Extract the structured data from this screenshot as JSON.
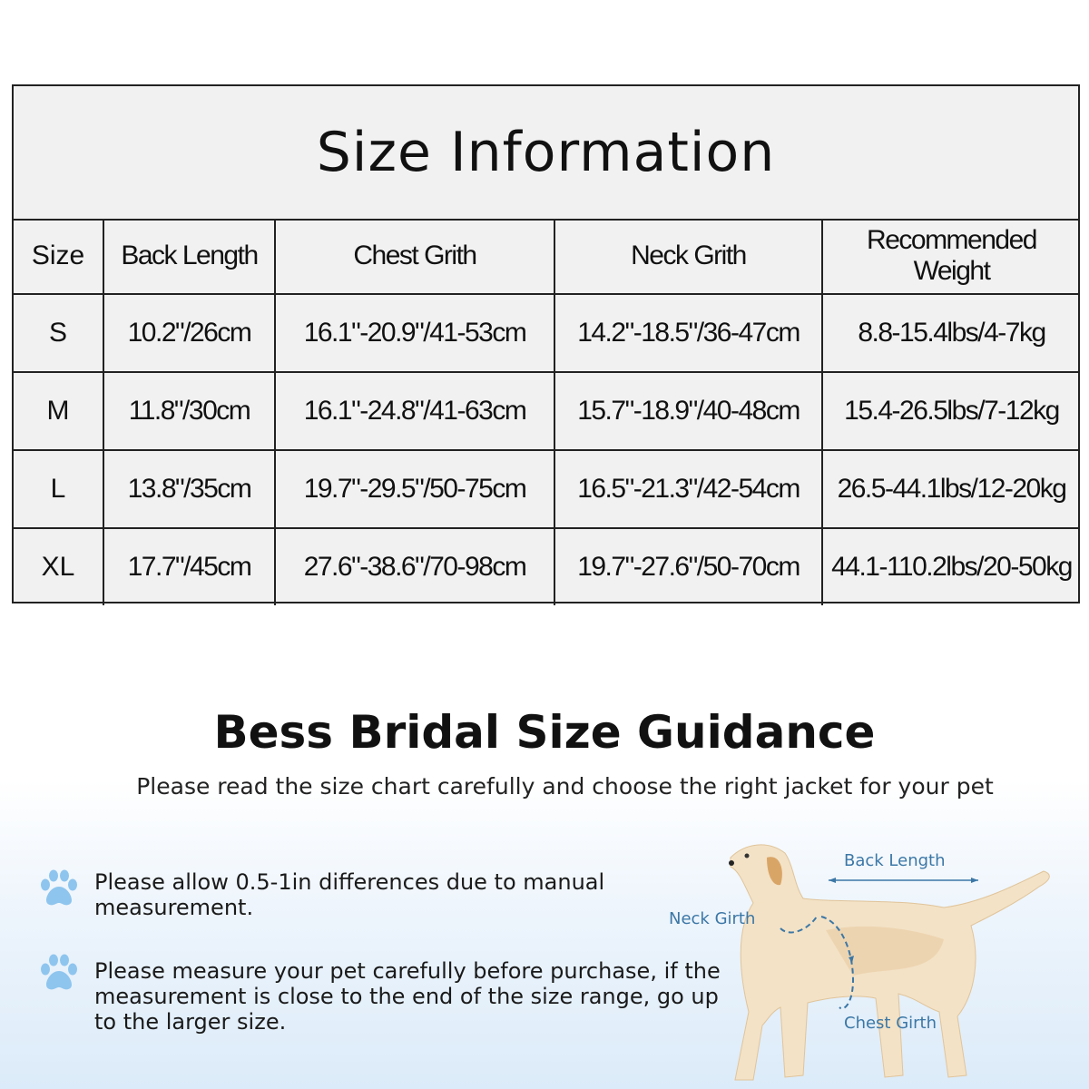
{
  "size_table": {
    "title": "Size Information",
    "headers": [
      "Size",
      "Back Length",
      "Chest Grith",
      "Neck Grith",
      "Recommended Weight"
    ],
    "rows": [
      [
        "S",
        "10.2\"/26cm",
        "16.1\"-20.9\"/41-53cm",
        "14.2\"-18.5\"/36-47cm",
        "8.8-15.4lbs/4-7kg"
      ],
      [
        "M",
        "11.8\"/30cm",
        "16.1\"-24.8\"/41-63cm",
        "15.7\"-18.9\"/40-48cm",
        "15.4-26.5lbs/7-12kg"
      ],
      [
        "L",
        "13.8\"/35cm",
        "19.7\"-29.5\"/50-75cm",
        "16.5\"-21.3\"/42-54cm",
        "26.5-44.1lbs/12-20kg"
      ],
      [
        "XL",
        "17.7\"/45cm",
        "27.6\"-38.6\"/70-98cm",
        "19.7\"-27.6\"/50-70cm",
        "44.1-110.2lbs/20-50kg"
      ]
    ]
  },
  "guidance": {
    "title": "Bess Bridal Size Guidance",
    "subtitle": "Please read the size chart carefully and choose the right jacket for your pet",
    "tips": [
      {
        "icon": "paw-icon",
        "text": "Please allow 0.5-1in differences due to manual measurement."
      },
      {
        "icon": "paw-icon",
        "text": "Please measure your pet carefully before purchase, if the measurement is close to the end of the size range, go up to the larger size."
      }
    ]
  },
  "diagram": {
    "back_length": "Back Length",
    "neck_girth": "Neck Girth",
    "chest_girth": "Chest Girth"
  },
  "colors": {
    "accent_blue": "#3b77a6",
    "paw_blue": "#8ec5ee",
    "dog": "#e9cfa6"
  }
}
